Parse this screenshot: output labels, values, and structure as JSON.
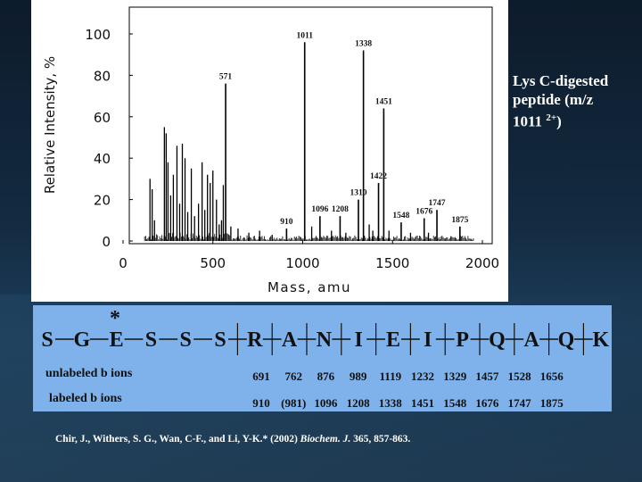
{
  "slide": {
    "caption_line1": "Lys C-digested",
    "caption_line2": "peptide (m/z",
    "caption_line3": "1011",
    "caption_charge": "2+",
    "caption_close": ")",
    "citation_prefix": "Chir, J., Withers, S. G., Wan, C-F., and Li, Y-K.* (2002) ",
    "citation_journal": "Biochem. J.",
    "citation_suffix": " 365, 857-863."
  },
  "chart_data": {
    "type": "bar",
    "xlabel": "Mass, amu",
    "ylabel": "Relative Intensity, %",
    "xlim": [
      0,
      2000
    ],
    "ylim": [
      0,
      100
    ],
    "xticks": [
      0,
      500,
      1000,
      1500,
      2000
    ],
    "yticks": [
      0,
      20,
      40,
      60,
      80,
      100
    ],
    "labeled_peaks": [
      {
        "label": "571",
        "x": 571,
        "y": 76
      },
      {
        "label": "910",
        "x": 910,
        "y": 6
      },
      {
        "label": "1011",
        "x": 1011,
        "y": 96
      },
      {
        "label": "1096",
        "x": 1096,
        "y": 12
      },
      {
        "label": "1208",
        "x": 1208,
        "y": 12
      },
      {
        "label": "1310",
        "x": 1310,
        "y": 20
      },
      {
        "label": "1338",
        "x": 1338,
        "y": 92
      },
      {
        "label": "1422",
        "x": 1422,
        "y": 28
      },
      {
        "label": "1451",
        "x": 1451,
        "y": 64
      },
      {
        "label": "1548",
        "x": 1548,
        "y": 9
      },
      {
        "label": "1676",
        "x": 1676,
        "y": 11
      },
      {
        "label": "1747",
        "x": 1747,
        "y": 15
      },
      {
        "label": "1875",
        "x": 1875,
        "y": 7
      }
    ],
    "other_peaks": [
      {
        "x": 150,
        "y": 30
      },
      {
        "x": 162,
        "y": 25
      },
      {
        "x": 175,
        "y": 10
      },
      {
        "x": 230,
        "y": 55
      },
      {
        "x": 240,
        "y": 52
      },
      {
        "x": 250,
        "y": 38
      },
      {
        "x": 265,
        "y": 22
      },
      {
        "x": 280,
        "y": 32
      },
      {
        "x": 300,
        "y": 46
      },
      {
        "x": 315,
        "y": 18
      },
      {
        "x": 330,
        "y": 47
      },
      {
        "x": 345,
        "y": 40
      },
      {
        "x": 360,
        "y": 14
      },
      {
        "x": 380,
        "y": 35
      },
      {
        "x": 398,
        "y": 12
      },
      {
        "x": 420,
        "y": 18
      },
      {
        "x": 440,
        "y": 38
      },
      {
        "x": 455,
        "y": 15
      },
      {
        "x": 470,
        "y": 32
      },
      {
        "x": 485,
        "y": 28
      },
      {
        "x": 500,
        "y": 34
      },
      {
        "x": 520,
        "y": 20
      },
      {
        "x": 535,
        "y": 8
      },
      {
        "x": 548,
        "y": 10
      },
      {
        "x": 558,
        "y": 27
      },
      {
        "x": 600,
        "y": 7
      },
      {
        "x": 640,
        "y": 6
      },
      {
        "x": 700,
        "y": 4
      },
      {
        "x": 760,
        "y": 5
      },
      {
        "x": 830,
        "y": 3
      },
      {
        "x": 1050,
        "y": 7
      },
      {
        "x": 1160,
        "y": 5
      },
      {
        "x": 1240,
        "y": 4
      },
      {
        "x": 1370,
        "y": 8
      },
      {
        "x": 1390,
        "y": 5
      },
      {
        "x": 1480,
        "y": 5
      },
      {
        "x": 1600,
        "y": 4
      },
      {
        "x": 1700,
        "y": 4
      }
    ]
  },
  "sequence": {
    "residues": [
      "S",
      "G",
      "E",
      "S",
      "S",
      "S",
      "R",
      "A",
      "N",
      "I",
      "E",
      "I",
      "P",
      "Q",
      "A",
      "Q",
      "K"
    ],
    "star": "*",
    "unlabeled_title": "unlabeled b ions",
    "labeled_title": "labeled b ions",
    "unlabeled_values": [
      "691",
      "762",
      "876",
      "989",
      "1119",
      "1232",
      "1329",
      "1457",
      "1528",
      "1656"
    ],
    "labeled_values": [
      "910",
      "(981)",
      "1096",
      "1208",
      "1338",
      "1451",
      "1548",
      "1676",
      "1747",
      "1875"
    ]
  },
  "colors": {
    "sequence_panel": "#7fb2ea",
    "text_dark": "#111111",
    "caption_text": "#ffffff"
  }
}
